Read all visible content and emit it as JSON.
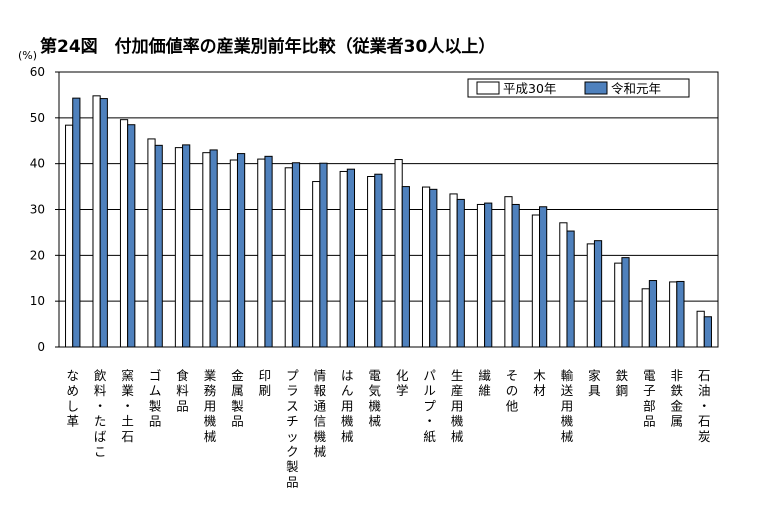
{
  "chart_data": {
    "type": "bar",
    "title": "第24図　付加価値率の産業別前年比較（従業者30人以上）",
    "unit_label": "(%)",
    "ylim": [
      0,
      60
    ],
    "yticks": [
      0,
      10,
      20,
      30,
      40,
      50,
      60
    ],
    "grid": true,
    "legend": "top-right",
    "categories": [
      "なめし革",
      "飲料・たばこ",
      "窯業・土石",
      "ゴム製品",
      "食料品",
      "業務用機械",
      "金属製品",
      "印刷",
      "プラスチック製品",
      "情報通信機械",
      "はん用機械",
      "電気機械",
      "化学",
      "パルプ・紙",
      "生産用機械",
      "繊維",
      "その他",
      "木材",
      "輸送用機械",
      "家具",
      "鉄鋼",
      "電子部品",
      "非鉄金属",
      "石油・石炭"
    ],
    "series": [
      {
        "name": "平成30年",
        "color": "#ffffff",
        "values": [
          48.4,
          54.8,
          49.6,
          45.4,
          43.5,
          42.4,
          40.8,
          41.0,
          39.1,
          36.1,
          38.3,
          37.2,
          40.9,
          34.9,
          33.4,
          31.1,
          32.8,
          28.8,
          27.1,
          22.5,
          18.3,
          12.7,
          14.2,
          7.8
        ]
      },
      {
        "name": "令和元年",
        "color": "#4f81bd",
        "values": [
          54.3,
          54.2,
          48.5,
          44.0,
          44.1,
          43.0,
          42.2,
          41.6,
          40.2,
          40.1,
          38.8,
          37.7,
          35.0,
          34.4,
          32.2,
          31.4,
          31.1,
          30.6,
          25.3,
          23.2,
          19.5,
          14.5,
          14.3,
          6.6
        ]
      }
    ]
  }
}
